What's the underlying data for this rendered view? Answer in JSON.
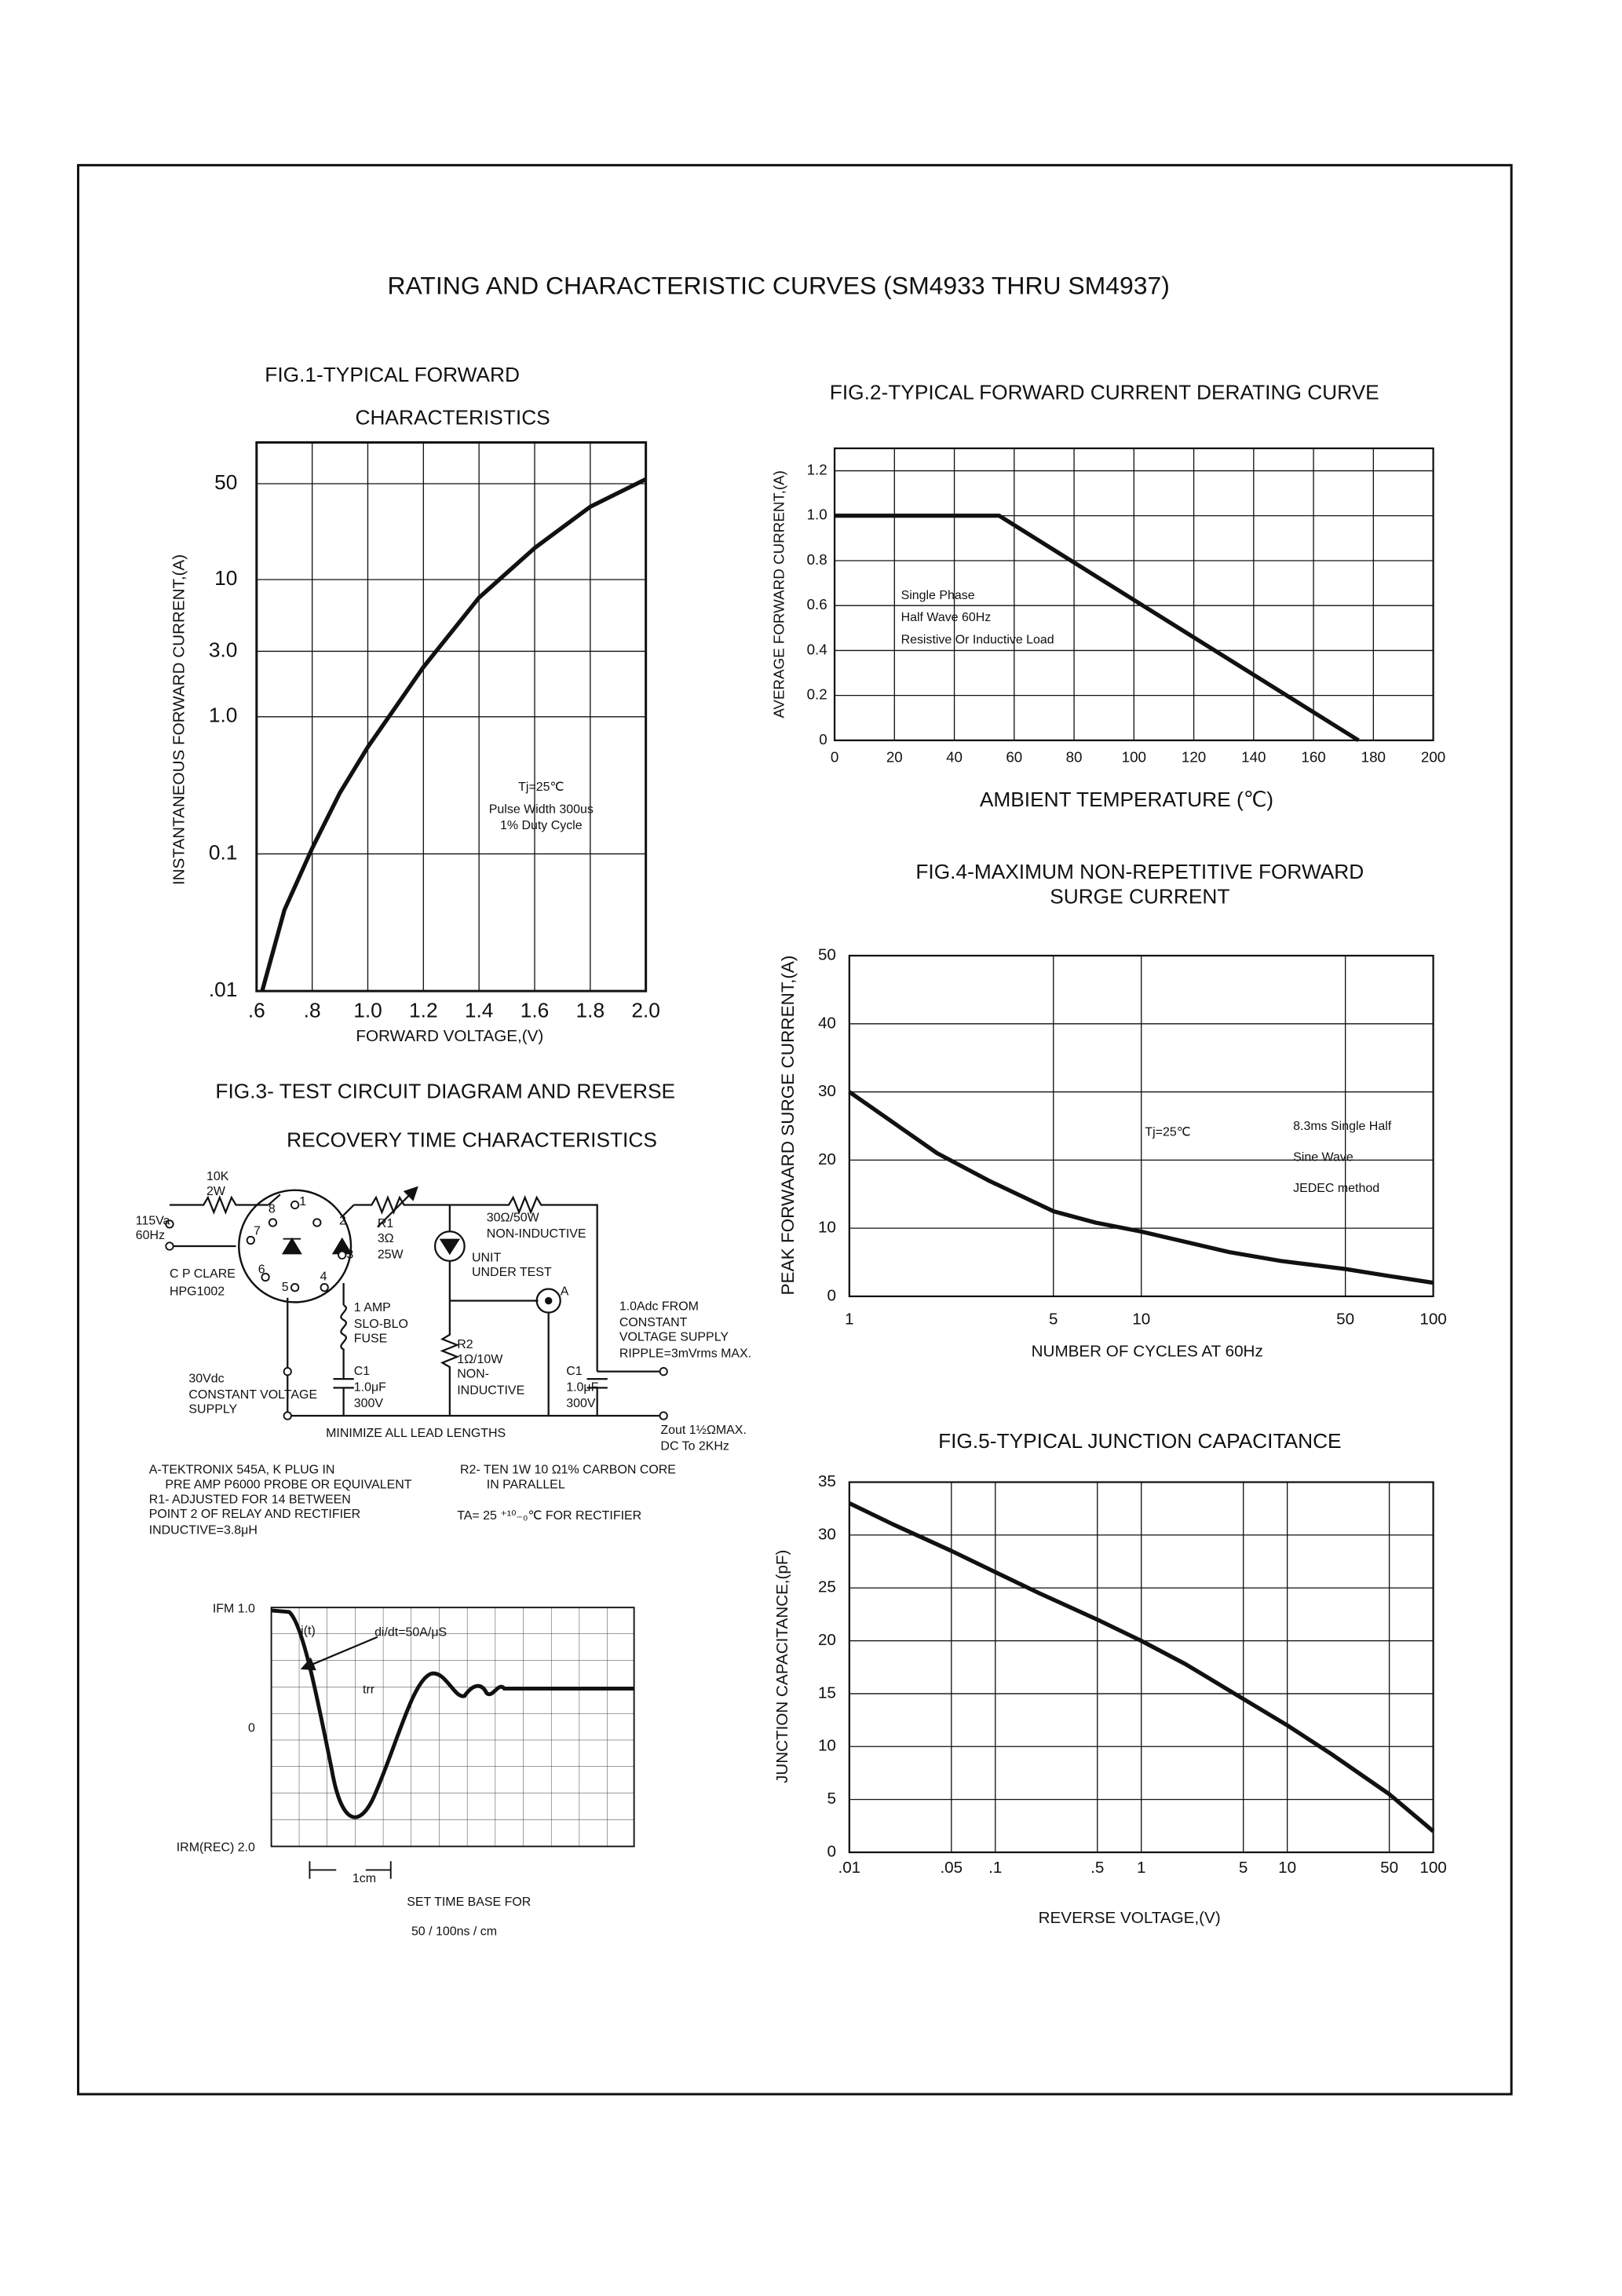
{
  "title": "RATING AND CHARACTERISTIC CURVES (SM4933 THRU SM4937)",
  "chart_data": [
    {
      "type": "line",
      "title": [
        "FIG.1-TYPICAL FORWARD",
        "CHARACTERISTICS"
      ],
      "xlabel": "FORWARD VOLTAGE,(V)",
      "ylabel": "INSTANTANEOUS FORWARD CURRENT,(A)",
      "yscale": "log",
      "grid": true,
      "color": "#111",
      "x": [
        0.62,
        0.7,
        0.8,
        0.9,
        1.0,
        1.2,
        1.4,
        1.6,
        1.8,
        2.0
      ],
      "values": [
        0.01,
        0.039,
        0.11,
        0.28,
        0.6,
        2.3,
        7.4,
        17,
        34,
        54
      ],
      "xlim": [
        0.6,
        2.0
      ],
      "xticks": [
        {
          "value": 0.6,
          "label": ".6"
        },
        {
          "value": 0.8,
          "label": ".8"
        },
        {
          "value": 1.0,
          "label": "1.0"
        },
        1.2,
        1.4,
        1.6,
        1.8,
        {
          "value": 2.0,
          "label": "2.0"
        }
      ],
      "ylim": [
        0.01,
        100
      ],
      "yticks": [
        {
          "value": 0.01,
          "label": ".01"
        },
        0.1,
        {
          "value": 1,
          "label": "1.0"
        },
        {
          "value": 3,
          "label": "3.0"
        },
        10,
        50
      ],
      "annotations": [
        "Tj=25℃",
        "Pulse Width 300us",
        "1% Duty Cycle"
      ]
    },
    {
      "type": "line",
      "title": [
        "FIG.2-TYPICAL FORWARD CURRENT DERATING CURVE"
      ],
      "xlabel": "AMBIENT TEMPERATURE (℃)",
      "ylabel": "AVERAGE FORWARD CURRENT,(A)",
      "grid": true,
      "color": "#111",
      "x": [
        0,
        55,
        175
      ],
      "values": [
        1.0,
        1.0,
        0
      ],
      "xlim": [
        0,
        200
      ],
      "xticks": [
        0,
        20,
        40,
        60,
        80,
        100,
        120,
        140,
        160,
        180,
        200
      ],
      "ylim": [
        0,
        1.3
      ],
      "yticks": [
        0,
        0.2,
        0.4,
        0.6,
        0.8,
        {
          "value": 1.0,
          "label": "1.0"
        },
        1.2
      ],
      "annotations": [
        "Single Phase",
        "Half Wave 60Hz",
        "Resistive Or Inductive Load"
      ]
    },
    {
      "type": "line",
      "title": [
        "FIG.4-MAXIMUM NON-REPETITIVE FORWARD",
        "SURGE CURRENT"
      ],
      "xlabel": "NUMBER OF CYCLES AT 60Hz",
      "ylabel": "PEAK FORWAARD SURGE CURRENT,(A)",
      "xscale": "log",
      "grid": true,
      "color": "#111",
      "x": [
        1,
        2,
        3,
        5,
        7,
        10,
        20,
        30,
        50,
        70,
        100
      ],
      "values": [
        30,
        21,
        17,
        12.5,
        10.8,
        9.5,
        6.5,
        5.2,
        4,
        3,
        2
      ],
      "xlim": [
        1,
        100
      ],
      "xticks": [
        1,
        5,
        10,
        50,
        100
      ],
      "ylim": [
        0,
        50
      ],
      "yticks": [
        0,
        10,
        20,
        30,
        40,
        50
      ],
      "annotations": [
        "Tj=25℃",
        "8.3ms Single Half",
        "Sine Wave",
        "JEDEC method"
      ]
    },
    {
      "type": "line",
      "title": [
        "FIG.5-TYPICAL JUNCTION CAPACITANCE"
      ],
      "xlabel": "REVERSE VOLTAGE,(V)",
      "ylabel": "JUNCTION CAPACITANCE,(pF)",
      "xscale": "log",
      "grid": true,
      "color": "#111",
      "x": [
        0.01,
        0.02,
        0.05,
        0.1,
        0.2,
        0.5,
        1,
        2,
        5,
        10,
        20,
        50,
        100
      ],
      "values": [
        33,
        31,
        28.5,
        26.5,
        24.5,
        22,
        20,
        17.8,
        14.5,
        12,
        9.3,
        5.5,
        2
      ],
      "xlim": [
        0.01,
        100
      ],
      "xticks": [
        {
          "value": 0.01,
          "label": ".01"
        },
        {
          "value": 0.05,
          "label": ".05"
        },
        {
          "value": 0.1,
          "label": ".1"
        },
        {
          "value": 0.5,
          "label": ".5"
        },
        1,
        5,
        10,
        50,
        100
      ],
      "ylim": [
        0,
        35
      ],
      "yticks": [
        0,
        5,
        10,
        15,
        20,
        25,
        30,
        35
      ]
    }
  ],
  "fig3": {
    "title": [
      "FIG.3- TEST CIRCUIT DIAGRAM AND REVERSE",
      "RECOVERY TIME CHARACTERISTICS"
    ],
    "labels": [
      "10K",
      "2W",
      "115Va",
      "60Hz",
      "R1",
      "3Ω",
      "25W",
      "30Ω/50W",
      "NON-INDUCTIVE",
      "UNIT",
      "UNDER TEST",
      "C P CLARE",
      "HPG1002",
      "A",
      "1 AMP",
      "SLO-BLO",
      "FUSE",
      "1.0Adc FROM",
      "CONSTANT",
      "VOLTAGE SUPPLY",
      "RIPPLE=3mVrms MAX.",
      "R2",
      "1Ω/10W",
      "NON-",
      "INDUCTIVE",
      "C1",
      "1.0μF",
      "300V",
      "C1",
      "1.0μF",
      "300V",
      "30Vdc",
      "CONSTANT VOLTAGE",
      "SUPPLY",
      "MINIMIZE ALL LEAD LENGTHS",
      "Zout 1½ΩMAX.",
      "DC To 2KHz",
      "1",
      "2",
      "3",
      "4",
      "5",
      "6",
      "7",
      "8"
    ],
    "notes": [
      "A-TEKTRONIX 545A, K PLUG IN",
      "PRE AMP P6000 PROBE OR EQUIVALENT",
      "R1- ADJUSTED FOR 14 BETWEEN",
      "POINT 2 OF RELAY AND RECTIFIER",
      "INDUCTIVE=3.8μH",
      "R2- TEN 1W 10 Ω1% CARBON CORE",
      "IN PARALLEL",
      "TA= 25 ⁺¹⁰₋₀℃ FOR RECTIFIER"
    ],
    "waveform_labels": [
      "IFM 1.0",
      "0",
      "IRM(REC) 2.0",
      "i(t)",
      "di/dt=50A/μS",
      "trr",
      "1cm",
      "SET TIME BASE FOR",
      "50 / 100ns / cm"
    ]
  }
}
